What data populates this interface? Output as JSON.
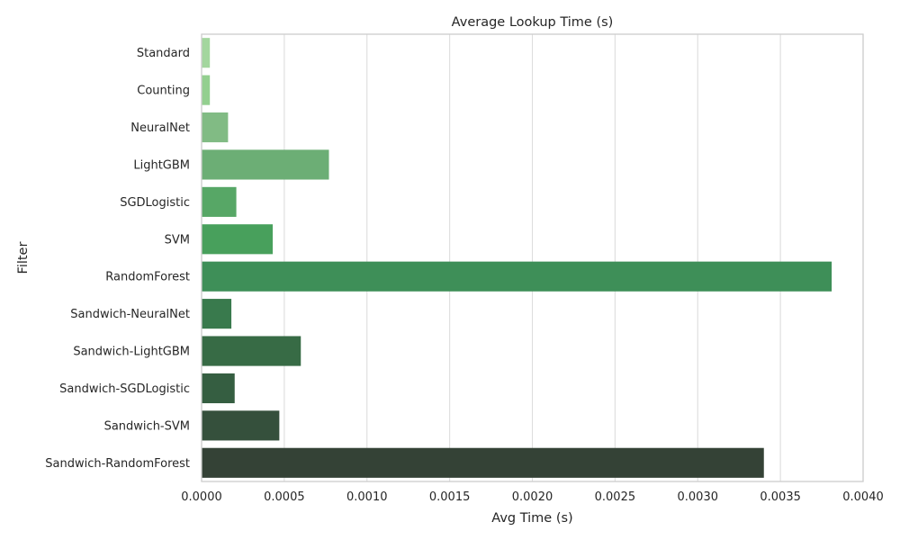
{
  "chart_data": {
    "type": "bar",
    "orientation": "horizontal",
    "title": "Average Lookup Time (s)",
    "xlabel": "Avg Time (s)",
    "ylabel": "Filter",
    "xlim": [
      0,
      0.004
    ],
    "xticks": [
      0.0,
      0.0005,
      0.001,
      0.0015,
      0.002,
      0.0025,
      0.003,
      0.0035,
      0.004
    ],
    "xtick_labels": [
      "0.0000",
      "0.0005",
      "0.0010",
      "0.0015",
      "0.0020",
      "0.0025",
      "0.0030",
      "0.0035",
      "0.0040"
    ],
    "grid": "vertical",
    "categories": [
      "Standard",
      "Counting",
      "NeuralNet",
      "LightGBM",
      "SGDLogistic",
      "SVM",
      "RandomForest",
      "Sandwich-NeuralNet",
      "Sandwich-LightGBM",
      "Sandwich-SGDLogistic",
      "Sandwich-SVM",
      "Sandwich-RandomForest"
    ],
    "values": [
      5e-05,
      5e-05,
      0.00016,
      0.00077,
      0.00021,
      0.00043,
      0.00381,
      0.00018,
      0.0006,
      0.0002,
      0.00047,
      0.0034
    ],
    "colors": [
      "#a3d69e",
      "#93cf8f",
      "#81bb84",
      "#6cae75",
      "#57a766",
      "#48a05c",
      "#3e8f58",
      "#397a4d",
      "#376b45",
      "#355e41",
      "#35503c",
      "#344236"
    ]
  }
}
